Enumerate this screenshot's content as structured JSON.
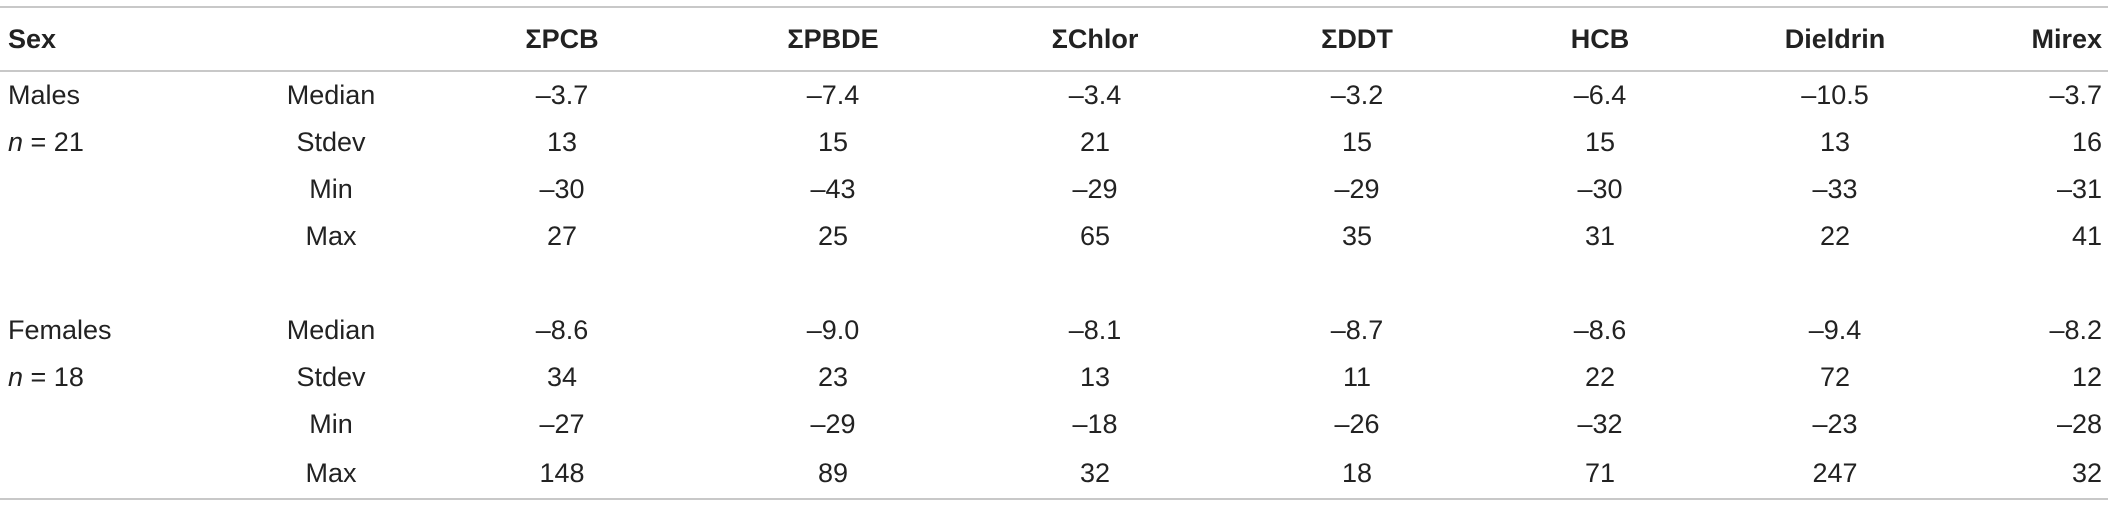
{
  "table": {
    "headers": [
      "Sex",
      "",
      "ΣPCB",
      "ΣPBDE",
      "ΣChlor",
      "ΣDDT",
      "HCB",
      "Dieldrin",
      "Mirex"
    ],
    "groups": [
      {
        "label": "Males",
        "n_var": "n",
        "n_value": " = 21",
        "rows": [
          {
            "stat": "Median",
            "values": [
              "–3.7",
              "–7.4",
              "–3.4",
              "–3.2",
              "–6.4",
              "–10.5",
              "–3.7"
            ]
          },
          {
            "stat": "Stdev",
            "values": [
              "13",
              "15",
              "21",
              "15",
              "15",
              "13",
              "16"
            ]
          },
          {
            "stat": "Min",
            "values": [
              "–30",
              "–43",
              "–29",
              "–29",
              "–30",
              "–33",
              "–31"
            ]
          },
          {
            "stat": "Max",
            "values": [
              "27",
              "25",
              "65",
              "35",
              "31",
              "22",
              "41"
            ]
          }
        ]
      },
      {
        "label": "Females",
        "n_var": "n",
        "n_value": " = 18",
        "rows": [
          {
            "stat": "Median",
            "values": [
              "–8.6",
              "–9.0",
              "–8.1",
              "–8.7",
              "–8.6",
              "–9.4",
              "–8.2"
            ]
          },
          {
            "stat": "Stdev",
            "values": [
              "34",
              "23",
              "13",
              "11",
              "22",
              "72",
              "12"
            ]
          },
          {
            "stat": "Min",
            "values": [
              "–27",
              "–29",
              "–18",
              "–26",
              "–32",
              "–23",
              "–28"
            ]
          },
          {
            "stat": "Max",
            "values": [
              "148",
              "89",
              "32",
              "18",
              "71",
              "247",
              "32"
            ]
          }
        ]
      }
    ]
  }
}
